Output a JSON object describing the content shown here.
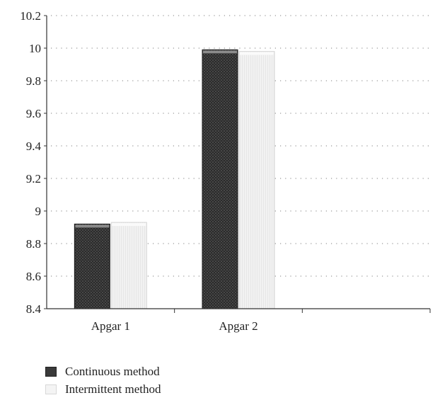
{
  "chart_data": {
    "type": "bar",
    "categories": [
      "Apgar 1",
      "Apgar 2"
    ],
    "extra_axis_slots": 1,
    "series": [
      {
        "name": "Continuous method",
        "values": [
          8.92,
          9.99
        ]
      },
      {
        "name": "Intermittent method",
        "values": [
          8.93,
          9.98
        ]
      }
    ],
    "ylim": [
      8.4,
      10.2
    ],
    "yticks": [
      "8.4",
      "8.6",
      "8.8",
      "9",
      "9.2",
      "9.4",
      "9.6",
      "9.8",
      "10",
      "10.2"
    ],
    "grid": "horizontal dotted",
    "legend_position": "bottom-left",
    "title": "",
    "xlabel": "",
    "ylabel": "",
    "colors": {
      "continuous": "#2e2e2e",
      "intermittent": "#efefef",
      "axis": "#333333",
      "grid": "#999999"
    }
  },
  "legend": {
    "items": [
      {
        "label": "Continuous method"
      },
      {
        "label": "Intermittent method"
      }
    ]
  }
}
